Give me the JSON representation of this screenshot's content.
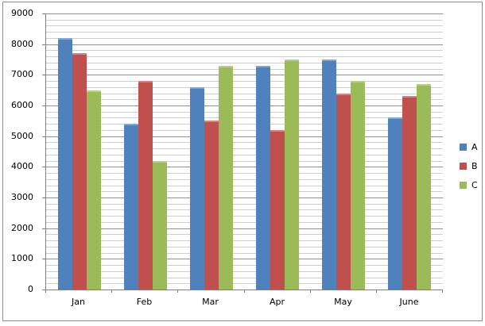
{
  "chart_data": {
    "type": "bar",
    "title": "",
    "categories": [
      "Jan",
      "Feb",
      "Mar",
      "Apr",
      "May",
      "June"
    ],
    "series": [
      {
        "name": "A",
        "color": "#4F81BD",
        "values": [
          8200,
          5400,
          6600,
          7300,
          7500,
          5600
        ]
      },
      {
        "name": "B",
        "color": "#C0504D",
        "values": [
          7700,
          6800,
          5500,
          5200,
          6400,
          6300
        ]
      },
      {
        "name": "C",
        "color": "#9BBB59",
        "values": [
          6500,
          4200,
          7300,
          7500,
          6800,
          6700
        ]
      }
    ],
    "xlabel": "",
    "ylabel": "",
    "y_axis": {
      "min": 0,
      "max": 9000,
      "major_unit": 1000,
      "minor_unit": 200,
      "tick_labels": [
        "0",
        "1000",
        "2000",
        "3000",
        "4000",
        "5000",
        "6000",
        "7000",
        "8000",
        "9000"
      ]
    },
    "ylim": [
      0,
      9000
    ],
    "grid": {
      "major": true,
      "minor": true
    },
    "legend": {
      "position": "right",
      "entries": [
        "A",
        "B",
        "C"
      ]
    }
  },
  "colors": {
    "series_a": "#4F81BD",
    "series_b": "#C0504D",
    "series_c": "#9BBB59",
    "grid_minor": "#cfcfcf",
    "grid_major": "#919191",
    "axis_line": "#7f7f7f",
    "chart_border": "#8e8e8e",
    "background": "#ffffff",
    "text": "#000000"
  }
}
